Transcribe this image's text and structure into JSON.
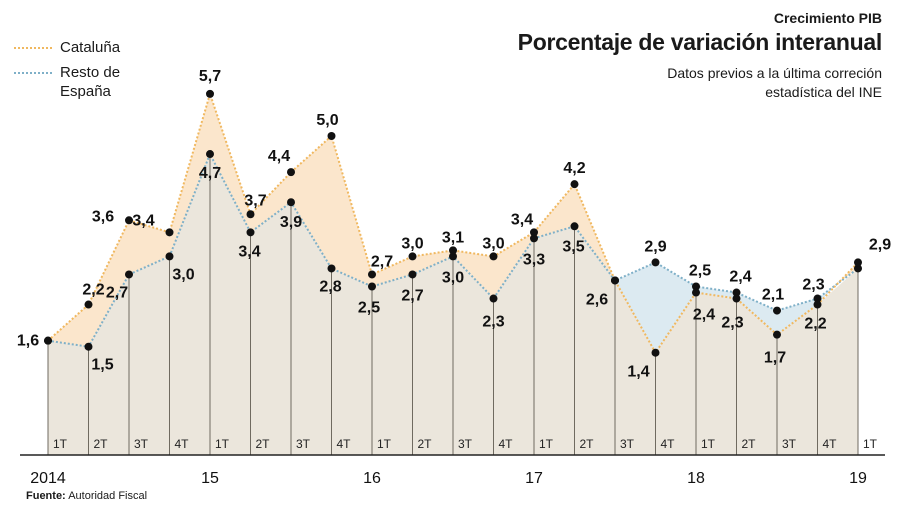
{
  "header": {
    "subtitle": "Crecimiento PIB",
    "title": "Porcentaje de variación interanual",
    "note_line1": "Datos previos a la última correción",
    "note_line2": "estadística del INE"
  },
  "source": {
    "label": "Fuente:",
    "text": "Autoridad Fiscal"
  },
  "colors": {
    "cataluna": "#f0b860",
    "resto": "#7fb0c8",
    "area_gray": "#ebe6dc",
    "area_cataluna_above": "#fbe6cc",
    "area_resto_above": "#dceaf1",
    "dot": "#111111"
  },
  "chart_data": {
    "type": "line",
    "title": "Porcentaje de variación interanual",
    "subtitle": "Crecimiento PIB",
    "categories": [
      "1T",
      "2T",
      "3T",
      "4T",
      "1T",
      "2T",
      "3T",
      "4T",
      "1T",
      "2T",
      "3T",
      "4T",
      "1T",
      "2T",
      "3T",
      "4T",
      "1T",
      "2T",
      "3T",
      "4T",
      "1T"
    ],
    "year_labels": [
      {
        "label": "2014",
        "index": 0
      },
      {
        "label": "15",
        "index": 4
      },
      {
        "label": "16",
        "index": 8
      },
      {
        "label": "17",
        "index": 12
      },
      {
        "label": "18",
        "index": 16
      },
      {
        "label": "19",
        "index": 20
      }
    ],
    "series": [
      {
        "name": "Cataluña",
        "values": [
          1.6,
          2.2,
          3.6,
          3.4,
          5.7,
          3.7,
          4.4,
          5.0,
          2.7,
          3.0,
          3.1,
          3.0,
          3.4,
          4.2,
          2.6,
          1.4,
          2.4,
          2.3,
          1.7,
          2.2,
          2.9
        ]
      },
      {
        "name": "Resto de España",
        "values": [
          1.6,
          1.5,
          2.7,
          3.0,
          4.7,
          3.4,
          3.9,
          2.8,
          2.5,
          2.7,
          3.0,
          2.3,
          3.3,
          3.5,
          2.6,
          2.9,
          2.5,
          2.4,
          2.1,
          2.3,
          2.8
        ]
      }
    ],
    "value_labels": [
      "1,6",
      "2,2",
      "3,6",
      "3,4",
      "5,7",
      "3,7",
      "4,4",
      "5,0",
      "2,7",
      "3,0",
      "3,1",
      "3,0",
      "3,4",
      "4,2",
      "2,6",
      "1,4",
      "2,4",
      "2,3",
      "1,7",
      "2,2",
      "2,9",
      "1,5",
      "2,7",
      "3,0",
      "4,7",
      "3,4",
      "3,9",
      "2,8",
      "2,5",
      "2,7",
      "3,0",
      "2,3",
      "3,3",
      "3,5",
      "2,9",
      "2,5",
      "2,4",
      "2,1",
      "2,3",
      "2,8"
    ],
    "legend_position": "top-left",
    "grid": false
  }
}
